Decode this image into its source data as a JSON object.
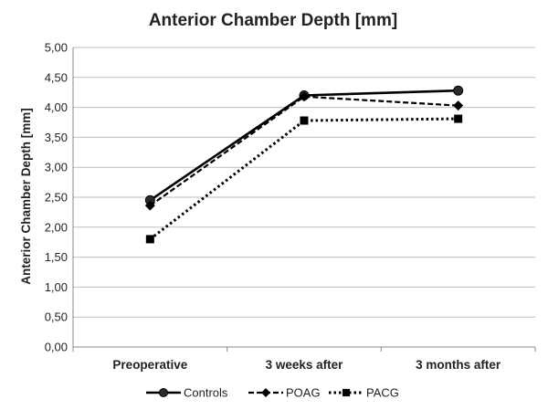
{
  "chart_data": {
    "type": "line",
    "title": "Anterior Chamber Depth [mm]",
    "xlabel": "",
    "ylabel": "Anterior Chamber Depth [mm]",
    "categories": [
      "Preoperative",
      "3 weeks after",
      "3 months after"
    ],
    "ylim": [
      0,
      5
    ],
    "yticks": [
      "0,00",
      "0,50",
      "1,00",
      "1,50",
      "2,00",
      "2,50",
      "3,00",
      "3,50",
      "4,00",
      "4,50",
      "5,00"
    ],
    "grid": true,
    "legend": "bottom",
    "series": [
      {
        "name": "Controls",
        "values": [
          2.45,
          4.2,
          4.28
        ],
        "marker": "circle",
        "dash": "solid"
      },
      {
        "name": "POAG",
        "values": [
          2.36,
          4.18,
          4.03
        ],
        "marker": "diamond",
        "dash": "dashed"
      },
      {
        "name": "PACG",
        "values": [
          1.8,
          3.78,
          3.81
        ],
        "marker": "square",
        "dash": "dotted"
      }
    ]
  }
}
